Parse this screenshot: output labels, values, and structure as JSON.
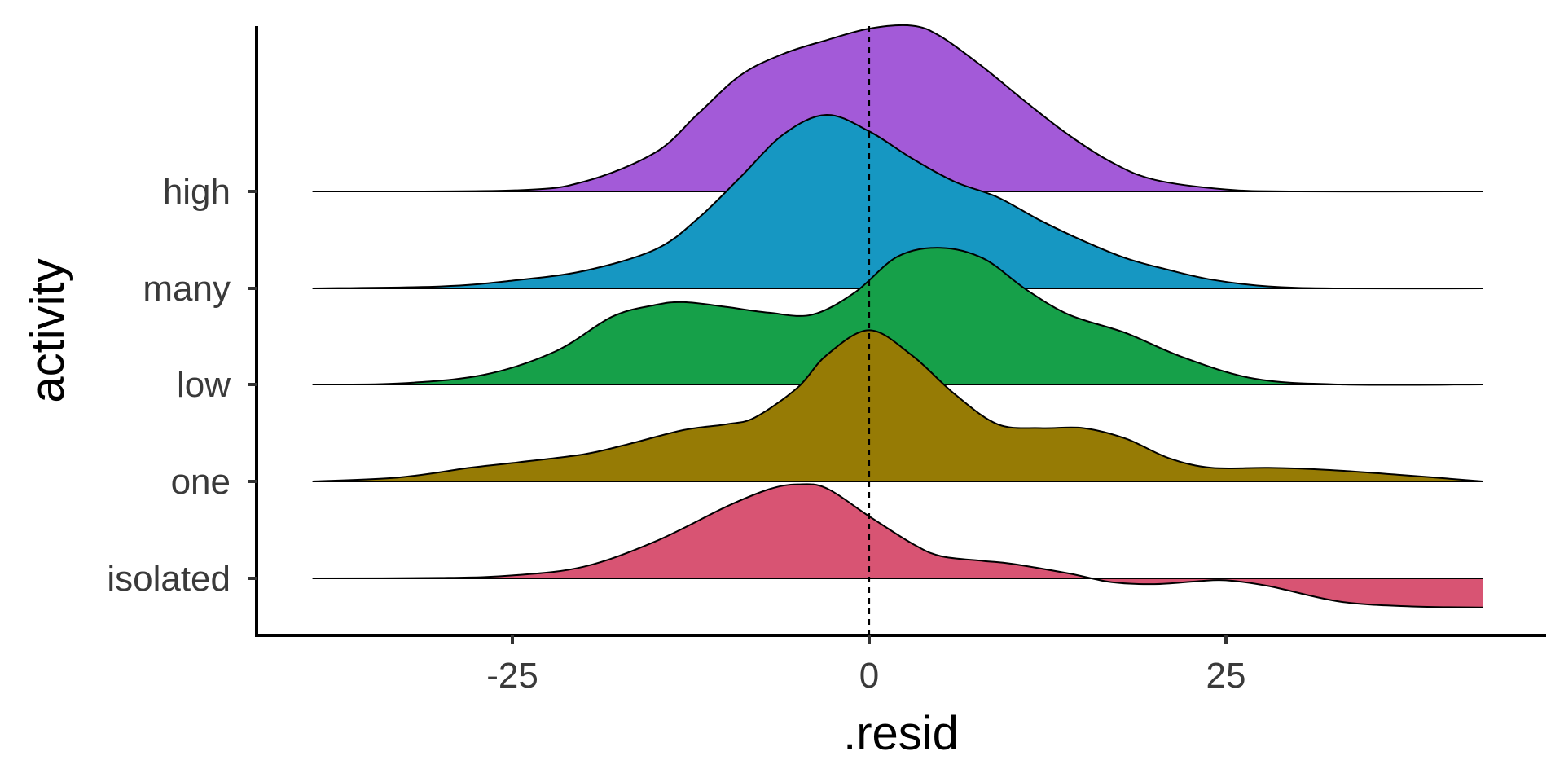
{
  "chart_data": {
    "type": "ridgeline",
    "title": "",
    "xlabel": ".resid",
    "ylabel": "activity",
    "xlim": [
      -42,
      47
    ],
    "x_ticks": [
      -25,
      0,
      25
    ],
    "x_tick_labels": [
      "-25",
      "0",
      "25"
    ],
    "reference_line": {
      "x": 0,
      "style": "dashed"
    },
    "density_x_range": [
      -39,
      43
    ],
    "grid": false,
    "legend": "none",
    "categories": [
      "isolated",
      "one",
      "low",
      "many",
      "high"
    ],
    "series": [
      {
        "name": "isolated",
        "color": "#D85473",
        "points": [
          [
            -39,
            0
          ],
          [
            -30,
            0.005
          ],
          [
            -25,
            0.03
          ],
          [
            -20,
            0.12
          ],
          [
            -15,
            0.38
          ],
          [
            -10,
            0.74
          ],
          [
            -7,
            0.92
          ],
          [
            -5,
            0.97
          ],
          [
            -3,
            0.93
          ],
          [
            0,
            0.64
          ],
          [
            3,
            0.36
          ],
          [
            5,
            0.23
          ],
          [
            8,
            0.18
          ],
          [
            10,
            0.15
          ],
          [
            14,
            0.05
          ],
          [
            17,
            -0.04
          ],
          [
            20,
            -0.06
          ],
          [
            23,
            -0.03
          ],
          [
            25,
            -0.02
          ],
          [
            28,
            -0.08
          ],
          [
            33,
            -0.24
          ],
          [
            38,
            -0.29
          ],
          [
            43,
            -0.3
          ]
        ]
      },
      {
        "name": "one",
        "color": "#967B05",
        "points": [
          [
            -39,
            0
          ],
          [
            -33,
            0.04
          ],
          [
            -28,
            0.14
          ],
          [
            -25,
            0.19
          ],
          [
            -20,
            0.28
          ],
          [
            -17,
            0.38
          ],
          [
            -13,
            0.53
          ],
          [
            -10,
            0.59
          ],
          [
            -8,
            0.66
          ],
          [
            -5,
            0.97
          ],
          [
            -3,
            1.3
          ],
          [
            0,
            1.56
          ],
          [
            3,
            1.3
          ],
          [
            6,
            0.9
          ],
          [
            9,
            0.59
          ],
          [
            12,
            0.55
          ],
          [
            15,
            0.55
          ],
          [
            18,
            0.44
          ],
          [
            21,
            0.24
          ],
          [
            24,
            0.14
          ],
          [
            28,
            0.14
          ],
          [
            32,
            0.12
          ],
          [
            37,
            0.07
          ],
          [
            43,
            0
          ]
        ]
      },
      {
        "name": "low",
        "color": "#16A049",
        "points": [
          [
            -39,
            0
          ],
          [
            -33,
            0.01
          ],
          [
            -27,
            0.1
          ],
          [
            -22,
            0.34
          ],
          [
            -18,
            0.7
          ],
          [
            -15,
            0.82
          ],
          [
            -13,
            0.85
          ],
          [
            -10,
            0.8
          ],
          [
            -7,
            0.74
          ],
          [
            -4,
            0.72
          ],
          [
            -1,
            0.95
          ],
          [
            2,
            1.32
          ],
          [
            5,
            1.41
          ],
          [
            8,
            1.3
          ],
          [
            11,
            0.98
          ],
          [
            14,
            0.72
          ],
          [
            18,
            0.53
          ],
          [
            22,
            0.28
          ],
          [
            27,
            0.06
          ],
          [
            33,
            0
          ],
          [
            43,
            0
          ]
        ]
      },
      {
        "name": "many",
        "color": "#1697C2",
        "points": [
          [
            -39,
            0
          ],
          [
            -30,
            0.02
          ],
          [
            -25,
            0.08
          ],
          [
            -20,
            0.18
          ],
          [
            -15,
            0.4
          ],
          [
            -12,
            0.72
          ],
          [
            -9,
            1.15
          ],
          [
            -6,
            1.59
          ],
          [
            -3,
            1.79
          ],
          [
            0,
            1.62
          ],
          [
            3,
            1.34
          ],
          [
            6,
            1.1
          ],
          [
            9,
            0.94
          ],
          [
            12,
            0.7
          ],
          [
            15,
            0.49
          ],
          [
            18,
            0.31
          ],
          [
            21,
            0.19
          ],
          [
            24,
            0.09
          ],
          [
            28,
            0.02
          ],
          [
            33,
            0
          ],
          [
            43,
            0
          ]
        ]
      },
      {
        "name": "high",
        "color": "#A35AD8",
        "points": [
          [
            -39,
            0
          ],
          [
            -25,
            0.01
          ],
          [
            -20,
            0.1
          ],
          [
            -15,
            0.4
          ],
          [
            -12,
            0.8
          ],
          [
            -9,
            1.2
          ],
          [
            -6,
            1.42
          ],
          [
            -3,
            1.56
          ],
          [
            0,
            1.68
          ],
          [
            3,
            1.71
          ],
          [
            5,
            1.6
          ],
          [
            8,
            1.28
          ],
          [
            11,
            0.92
          ],
          [
            14,
            0.58
          ],
          [
            17,
            0.3
          ],
          [
            20,
            0.12
          ],
          [
            25,
            0.02
          ],
          [
            30,
            0
          ],
          [
            43,
            0
          ]
        ]
      }
    ]
  }
}
